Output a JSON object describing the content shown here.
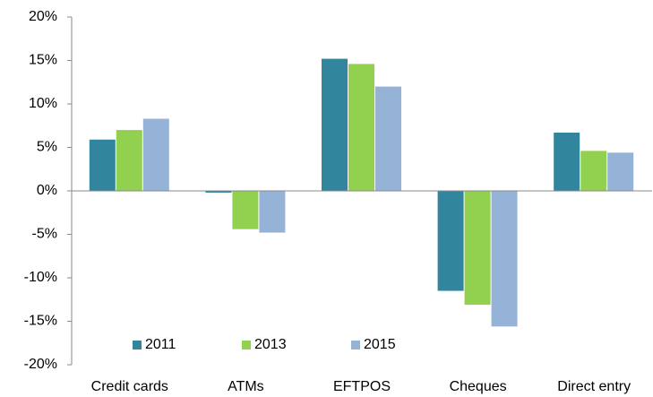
{
  "chart_data": {
    "type": "bar",
    "categories": [
      "Credit cards",
      "ATMs",
      "EFTPOS",
      "Cheques",
      "Direct entry"
    ],
    "series": [
      {
        "name": "2011",
        "color": "#31859c",
        "values": [
          5.9,
          -0.2,
          15.2,
          -11.5,
          6.7
        ]
      },
      {
        "name": "2013",
        "color": "#92d050",
        "values": [
          7.0,
          -4.4,
          14.6,
          -13.1,
          4.6
        ]
      },
      {
        "name": "2015",
        "color": "#95b3d7",
        "values": [
          8.3,
          -4.8,
          12.0,
          -15.6,
          4.4
        ]
      }
    ],
    "ylim": [
      -20,
      20
    ],
    "yticks": [
      {
        "value": -20,
        "label": "-20%"
      },
      {
        "value": -15,
        "label": "-15%"
      },
      {
        "value": -10,
        "label": "-10%"
      },
      {
        "value": -5,
        "label": "-5%"
      },
      {
        "value": 0,
        "label": "0%"
      },
      {
        "value": 5,
        "label": "5%"
      },
      {
        "value": 10,
        "label": "10%"
      },
      {
        "value": 15,
        "label": "15%"
      },
      {
        "value": 20,
        "label": "20%"
      }
    ],
    "grid": false,
    "legend": "lower left"
  }
}
